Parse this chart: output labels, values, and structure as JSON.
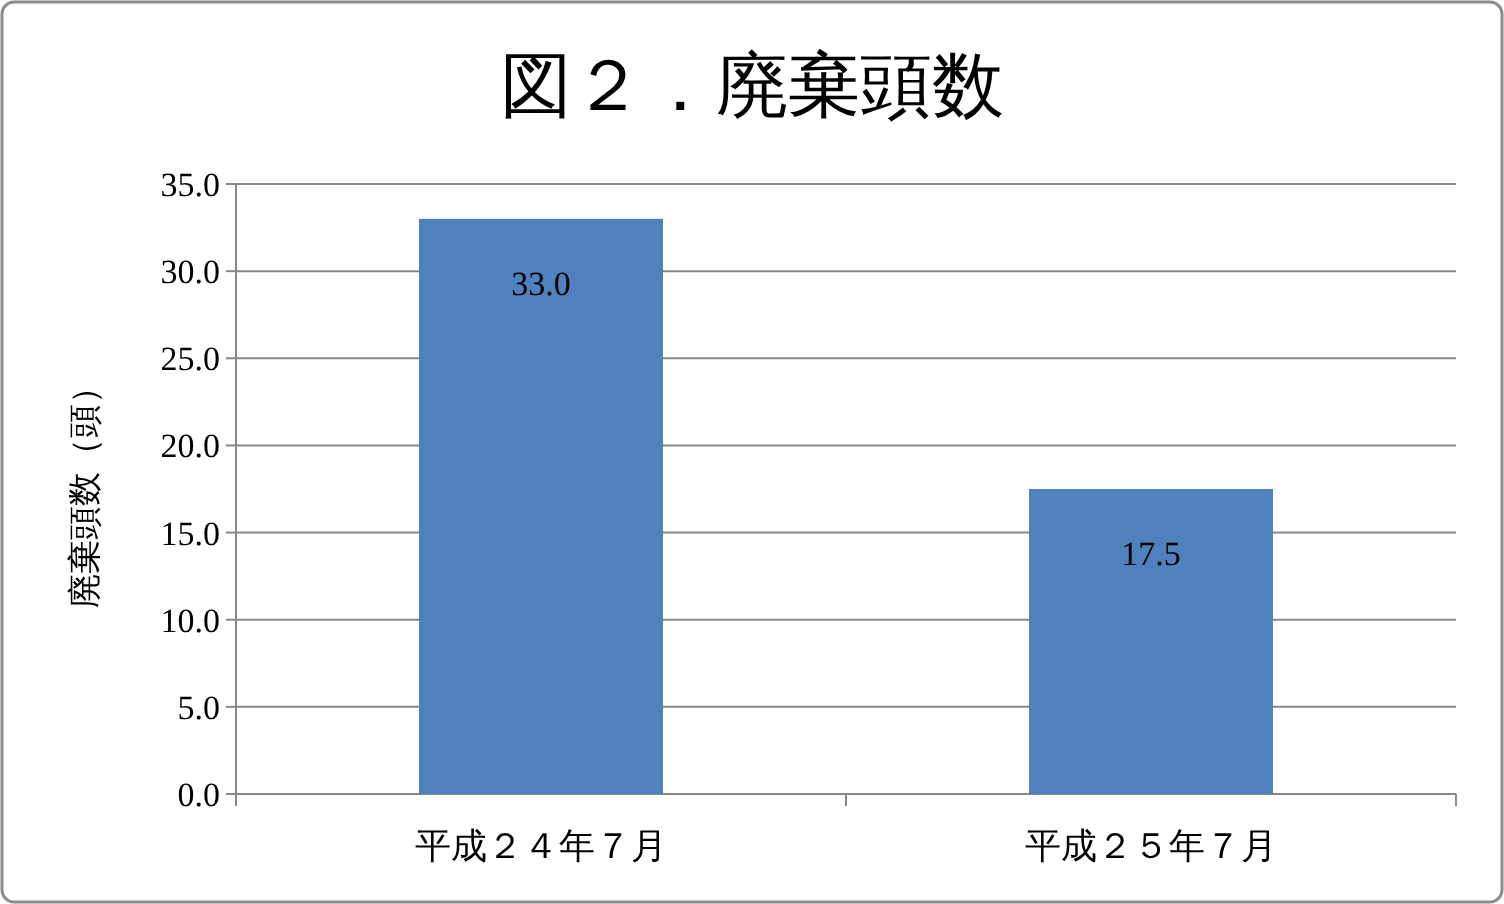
{
  "chart_data": {
    "type": "bar",
    "title": "図２．廃棄頭数",
    "ylabel": "廃棄頭数（頭）",
    "categories": [
      "平成２４年７月",
      "平成２５年７月"
    ],
    "series": [
      {
        "color": "#4f81bd",
        "values": [
          33.0,
          17.5
        ],
        "value_labels": [
          "33.0",
          "17.5"
        ]
      }
    ],
    "ylim": [
      0,
      35
    ],
    "yticks": [
      {
        "value": 0,
        "label": "0.0"
      },
      {
        "value": 5,
        "label": "5.0"
      },
      {
        "value": 10,
        "label": "10.0"
      },
      {
        "value": 15,
        "label": "15.0"
      },
      {
        "value": 20,
        "label": "20.0"
      },
      {
        "value": 25,
        "label": "25.0"
      },
      {
        "value": 30,
        "label": "30.0"
      },
      {
        "value": 35,
        "label": "35.0"
      }
    ],
    "grid": "y"
  }
}
